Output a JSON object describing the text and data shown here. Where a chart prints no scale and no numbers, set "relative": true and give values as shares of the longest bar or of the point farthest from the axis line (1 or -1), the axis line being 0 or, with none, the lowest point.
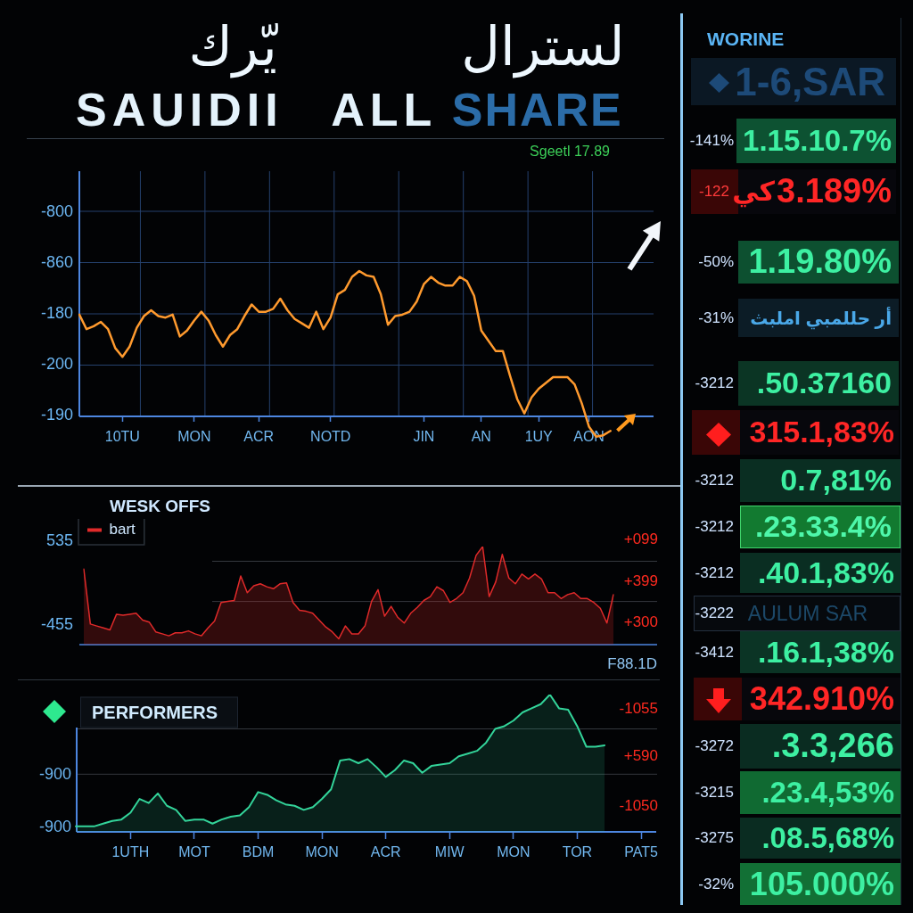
{
  "chart_data": [
    {
      "type": "line",
      "title": "لسترال يّرك",
      "subtitle": "SAUIDII ALL SHARE",
      "categories": [
        null,
        null,
        null,
        null,
        null,
        null,
        "10TU",
        null,
        null,
        null,
        null,
        null,
        null,
        null,
        null,
        null,
        "MON",
        null,
        null,
        null,
        null,
        null,
        null,
        null,
        null,
        "ACR",
        null,
        null,
        null,
        null,
        null,
        null,
        null,
        null,
        null,
        "NOTD",
        null,
        null,
        null,
        null,
        null,
        null,
        null,
        null,
        null,
        null,
        null,
        null,
        "JIN",
        null,
        null,
        null,
        null,
        null,
        null,
        null,
        "AN",
        null,
        null,
        null,
        null,
        null,
        null,
        null,
        "1UY",
        null,
        null,
        null,
        null,
        null,
        null,
        "AON",
        null,
        null,
        null,
        null,
        null,
        null,
        null,
        null,
        null
      ],
      "values": [
        0.7,
        0.6,
        0.62,
        0.65,
        0.6,
        0.47,
        0.41,
        0.48,
        0.61,
        0.69,
        0.73,
        0.69,
        0.68,
        0.7,
        0.55,
        0.59,
        0.66,
        0.72,
        0.66,
        0.56,
        0.48,
        0.56,
        0.6,
        0.69,
        0.77,
        0.72,
        0.72,
        0.74,
        0.81,
        0.73,
        0.67,
        0.64,
        0.61,
        0.72,
        0.6,
        0.68,
        0.84,
        0.87,
        0.96,
        1,
        0.97,
        0.96,
        0.84,
        0.63,
        0.69,
        0.7,
        0.72,
        0.79,
        0.91,
        0.96,
        0.92,
        0.9,
        0.9,
        0.96,
        0.93,
        0.83,
        0.59,
        0.52,
        0.45,
        0.45,
        0.28,
        0.12,
        0.02,
        0.13,
        0.19,
        0.23,
        0.27,
        0.27,
        0.27,
        0.22,
        0.09,
        -0.07,
        -0.14,
        -0.13,
        -0.1,
        null,
        null,
        null,
        null,
        null,
        null
      ],
      "color": "#ff9a2e",
      "relative": true,
      "grid": true,
      "marker": "none",
      "annotations": [
        "Sgeetl 17.89",
        "-800",
        "-860",
        "-180",
        "-200",
        "-190"
      ]
    },
    {
      "type": "area",
      "title": "WESK OFFS",
      "categories": [
        null,
        null,
        null,
        null,
        null,
        null,
        null,
        null,
        null,
        null,
        null,
        null,
        null,
        null,
        null,
        null,
        null,
        null,
        null,
        null,
        null,
        null,
        null,
        null,
        null,
        null,
        null,
        null,
        null,
        null,
        null,
        null,
        null,
        null,
        null,
        null,
        null,
        null,
        null,
        null,
        null,
        null,
        null,
        null,
        null,
        null,
        null,
        null,
        null,
        null,
        null,
        null,
        null,
        null,
        null,
        null,
        null,
        null,
        null,
        null,
        null,
        null,
        null,
        null,
        null,
        null,
        null,
        null,
        null,
        null,
        null,
        null,
        null,
        null,
        null,
        null,
        null,
        null,
        null,
        null,
        null,
        null
      ],
      "series": [
        {
          "name": "bart",
          "color": "#e02a2a",
          "values": [
            0.77,
            0.21,
            0.19,
            0.17,
            0.15,
            0.31,
            0.3,
            0.31,
            0.32,
            0.25,
            0.23,
            0.13,
            0.11,
            0.09,
            0.12,
            0.12,
            0.14,
            0.11,
            0.09,
            0.17,
            0.24,
            0.43,
            0.44,
            0.45,
            0.7,
            0.53,
            0.6,
            0.62,
            0.59,
            0.57,
            0.62,
            0.63,
            0.43,
            0.35,
            0.34,
            0.32,
            0.25,
            0.18,
            0.13,
            0.06,
            0.19,
            0.11,
            0.11,
            0.19,
            0.44,
            0.56,
            0.29,
            0.39,
            0.28,
            0.22,
            0.32,
            0.38,
            0.45,
            0.49,
            0.59,
            0.55,
            0.43,
            0.47,
            0.53,
            0.68,
            0.91,
            1,
            0.49,
            0.64,
            0.92,
            0.68,
            0.62,
            0.72,
            0.67,
            0.72,
            0.67,
            0.53,
            0.53,
            0.47,
            0.51,
            0.53,
            0.47,
            0.47,
            0.43,
            0.37,
            0.22,
            0.51
          ]
        }
      ],
      "relative": true,
      "legend": "top left",
      "marker": "none",
      "ref_lines": [
        {
          "axis": "y",
          "value": 0.85,
          "color": "#34383e"
        },
        {
          "axis": "y",
          "value": 0.44,
          "color": "#34383e"
        }
      ],
      "annotations": [
        "535",
        "-455",
        "+099",
        "+399",
        "+300",
        "F88.1D"
      ]
    },
    {
      "type": "area",
      "title": "PERFORMERS",
      "categories": [
        null,
        null,
        null,
        null,
        null,
        null,
        "1UTH",
        null,
        null,
        null,
        null,
        null,
        null,
        "MOT",
        null,
        null,
        null,
        null,
        null,
        null,
        "BDM",
        null,
        null,
        null,
        null,
        null,
        null,
        "MON",
        null,
        null,
        null,
        null,
        null,
        null,
        "ACR",
        null,
        null,
        null,
        null,
        null,
        null,
        "MIW",
        null,
        null,
        null,
        null,
        null,
        null,
        "MON",
        null,
        null,
        null,
        null,
        null,
        null,
        "TOR",
        null,
        null,
        null,
        null,
        null,
        null,
        "PAT5"
      ],
      "values": [
        0.04,
        0.04,
        0.04,
        0.06,
        0.08,
        0.09,
        0.14,
        0.24,
        0.21,
        0.28,
        0.19,
        0.16,
        0.08,
        0.09,
        0.09,
        0.06,
        0.09,
        0.11,
        0.12,
        0.18,
        0.29,
        0.27,
        0.23,
        0.2,
        0.19,
        0.16,
        0.18,
        0.24,
        0.31,
        0.52,
        0.53,
        0.5,
        0.53,
        0.47,
        0.4,
        0.45,
        0.52,
        0.5,
        0.43,
        0.48,
        0.49,
        0.5,
        0.55,
        0.57,
        0.59,
        0.65,
        0.75,
        0.77,
        0.81,
        0.87,
        0.9,
        0.93,
        1,
        0.9,
        0.89,
        0.77,
        0.62,
        0.62,
        0.63,
        null,
        null,
        null,
        null
      ],
      "color": "#33d49a",
      "relative": true,
      "marker": "none",
      "ref_lines": [
        {
          "axis": "y",
          "value": 0.75,
          "color": "#34383e"
        },
        {
          "axis": "y",
          "value": 0.42,
          "color": "#34383e"
        }
      ],
      "annotations": [
        "-900",
        "-900",
        "-1055",
        "+590",
        "-1050"
      ]
    },
    {
      "type": "other",
      "title": "WORINE",
      "annotations": [
        "1-6,SAR",
        "-141%",
        "1.15.10.7%",
        "-122",
        "كي",
        "3.189%",
        "-50%",
        "1.19.80%",
        "-31%",
        "أر حللمبي املبث",
        "-3212",
        ".50.37160",
        "315.1,83%",
        "-3212",
        "0.7,81%",
        "-3212",
        ".23.33.4%",
        "-3212",
        ".40.1,83%",
        "-3222",
        "AULUM SAR",
        "-3412",
        ".16.1,38%",
        "342.910%",
        "-3272",
        ".3.3,266",
        "-3215",
        ".23.4,53%",
        "-3275",
        ".08.5,68%",
        "-32%",
        "105.000%"
      ]
    }
  ]
}
